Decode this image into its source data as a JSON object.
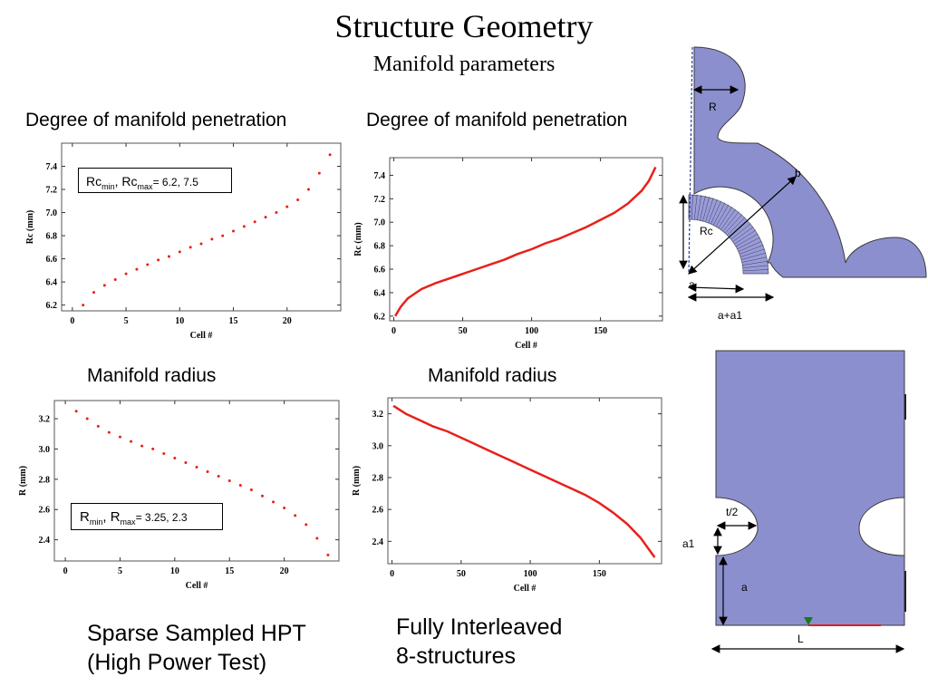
{
  "title": "Structure Geometry",
  "subtitle": "Manifold parameters",
  "headings": {
    "rc_left": "Degree of manifold penetration",
    "rc_right": "Degree of manifold penetration",
    "r_left": "Manifold radius",
    "r_right": "Manifold radius"
  },
  "captions": {
    "left": [
      "Sparse Sampled HPT",
      "(High Power Test)"
    ],
    "right": [
      "Fully Interleaved",
      "8-structures"
    ]
  },
  "boxes": {
    "rc": {
      "a": "Rc",
      "a_sub": "min",
      "sep": ", ",
      "b": "Rc",
      "b_sub": "max",
      "val": "=  6.2, 7.5"
    },
    "r": {
      "a": "R",
      "a_sub": "min",
      "sep": ", ",
      "b": "R",
      "b_sub": "max",
      "val": "=  3.25, 2.3"
    }
  },
  "diagram_labels": {
    "top": {
      "R": "R",
      "b": "b",
      "Rc": "Rc",
      "a": "a",
      "a_a1": "a+a1"
    },
    "bottom": {
      "t2": "t/2",
      "a1": "a1",
      "a": "a",
      "L": "L"
    }
  },
  "colors": {
    "data": "#e8201a",
    "shape": "#8c8fce",
    "shape_stroke": "#3a3a3a"
  },
  "chart_data": [
    {
      "type": "scatter",
      "title": "",
      "xlabel": "Cell #",
      "ylabel": "Rc (mm)",
      "xlim": [
        -1,
        25
      ],
      "ylim": [
        6.15,
        7.6
      ],
      "xticks": [
        0,
        5,
        10,
        15,
        20
      ],
      "yticks": [
        6.2,
        6.4,
        6.6,
        6.8,
        7.0,
        7.2,
        7.4
      ],
      "x": [
        1,
        2,
        3,
        4,
        5,
        6,
        7,
        8,
        9,
        10,
        11,
        12,
        13,
        14,
        15,
        16,
        17,
        18,
        19,
        20,
        21,
        22,
        23,
        24
      ],
      "y": [
        6.2,
        6.31,
        6.37,
        6.42,
        6.47,
        6.51,
        6.55,
        6.59,
        6.62,
        6.66,
        6.7,
        6.73,
        6.77,
        6.8,
        6.84,
        6.88,
        6.92,
        6.96,
        7.0,
        7.05,
        7.11,
        7.2,
        7.34,
        7.5
      ]
    },
    {
      "type": "line",
      "title": "",
      "xlabel": "Cell #",
      "ylabel": "Rc (mm)",
      "xlim": [
        -3,
        195
      ],
      "ylim": [
        6.16,
        7.55
      ],
      "xticks": [
        0,
        50,
        100,
        150
      ],
      "yticks": [
        6.2,
        6.4,
        6.6,
        6.8,
        7.0,
        7.2,
        7.4
      ],
      "x": [
        1,
        5,
        10,
        20,
        30,
        40,
        50,
        60,
        70,
        80,
        90,
        100,
        110,
        120,
        130,
        140,
        150,
        160,
        170,
        180,
        185,
        190
      ],
      "y": [
        6.2,
        6.28,
        6.35,
        6.43,
        6.48,
        6.52,
        6.56,
        6.6,
        6.64,
        6.68,
        6.73,
        6.77,
        6.82,
        6.86,
        6.91,
        6.96,
        7.02,
        7.08,
        7.16,
        7.27,
        7.35,
        7.47
      ]
    },
    {
      "type": "scatter",
      "title": "",
      "xlabel": "Cell #",
      "ylabel": "R (mm)",
      "xlim": [
        -1,
        25
      ],
      "ylim": [
        2.26,
        3.32
      ],
      "xticks": [
        0,
        5,
        10,
        15,
        20
      ],
      "yticks": [
        2.4,
        2.6,
        2.8,
        3.0,
        3.2
      ],
      "x": [
        1,
        2,
        3,
        4,
        5,
        6,
        7,
        8,
        9,
        10,
        11,
        12,
        13,
        14,
        15,
        16,
        17,
        18,
        19,
        20,
        21,
        22,
        23,
        24
      ],
      "y": [
        3.25,
        3.2,
        3.15,
        3.11,
        3.08,
        3.05,
        3.02,
        3.0,
        2.97,
        2.94,
        2.91,
        2.88,
        2.85,
        2.82,
        2.79,
        2.76,
        2.73,
        2.69,
        2.65,
        2.61,
        2.56,
        2.5,
        2.41,
        2.3
      ]
    },
    {
      "type": "line",
      "title": "",
      "xlabel": "Cell #",
      "ylabel": "R (mm)",
      "xlim": [
        -3,
        195
      ],
      "ylim": [
        2.26,
        3.3
      ],
      "xticks": [
        0,
        50,
        100,
        150
      ],
      "yticks": [
        2.4,
        2.6,
        2.8,
        3.0,
        3.2
      ],
      "x": [
        1,
        10,
        20,
        30,
        40,
        50,
        60,
        70,
        80,
        90,
        100,
        110,
        120,
        130,
        140,
        150,
        160,
        170,
        180,
        185,
        190
      ],
      "y": [
        3.25,
        3.2,
        3.16,
        3.12,
        3.09,
        3.05,
        3.01,
        2.97,
        2.93,
        2.89,
        2.85,
        2.81,
        2.77,
        2.73,
        2.69,
        2.64,
        2.58,
        2.51,
        2.42,
        2.36,
        2.3
      ]
    }
  ]
}
